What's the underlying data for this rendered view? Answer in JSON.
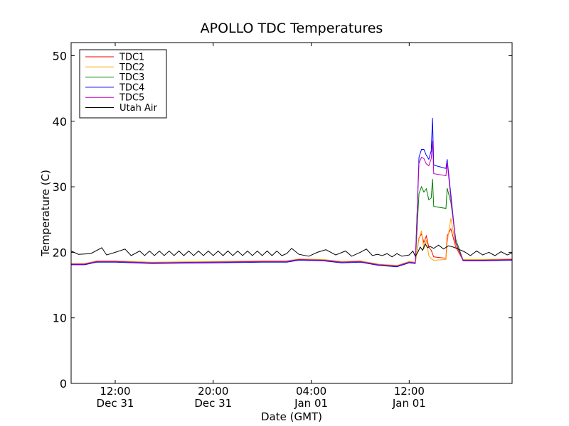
{
  "chart_data": {
    "type": "line",
    "title": "APOLLO TDC Temperatures",
    "xlabel": "Date (GMT)",
    "ylabel": "Temperature (C)",
    "ylim": [
      0,
      52
    ],
    "y_ticks": [
      0,
      10,
      20,
      30,
      40,
      50
    ],
    "x_axis_hours": "hours from Dec 31 00:00 GMT",
    "xlim": [
      8.4,
      44.4
    ],
    "x_ticks": [
      {
        "hour": 12,
        "time": "12:00",
        "date": "Dec 31"
      },
      {
        "hour": 20,
        "time": "20:00",
        "date": "Dec 31"
      },
      {
        "hour": 28,
        "time": "04:00",
        "date": "Jan 01"
      },
      {
        "hour": 36,
        "time": "12:00",
        "date": "Jan 01"
      }
    ],
    "legend_position": "top-left",
    "grid": false,
    "series": [
      {
        "name": "TDC1",
        "color": "#ff0000",
        "points": [
          [
            8.4,
            18.2
          ],
          [
            9.5,
            18.2
          ],
          [
            10.5,
            18.6
          ],
          [
            12,
            18.6
          ],
          [
            15,
            18.4
          ],
          [
            20,
            18.5
          ],
          [
            24,
            18.6
          ],
          [
            26,
            18.6
          ],
          [
            27,
            18.9
          ],
          [
            29,
            18.8
          ],
          [
            30.5,
            18.5
          ],
          [
            32,
            18.6
          ],
          [
            33.5,
            18.1
          ],
          [
            35,
            17.9
          ],
          [
            36,
            18.5
          ],
          [
            36.5,
            18.4
          ],
          [
            36.8,
            22.2
          ],
          [
            37,
            22.8
          ],
          [
            37.2,
            21.5
          ],
          [
            37.4,
            22.5
          ],
          [
            37.6,
            20.8
          ],
          [
            37.8,
            20.3
          ],
          [
            38,
            19.3
          ],
          [
            39,
            19.1
          ],
          [
            39.1,
            22.5
          ],
          [
            39.4,
            23.6
          ],
          [
            39.8,
            20.8
          ],
          [
            40.4,
            18.8
          ],
          [
            42,
            18.8
          ],
          [
            44.4,
            18.9
          ]
        ]
      },
      {
        "name": "TDC2",
        "color": "#ffa500",
        "points": [
          [
            8.4,
            18.3
          ],
          [
            9.5,
            18.3
          ],
          [
            10.5,
            18.7
          ],
          [
            12,
            18.7
          ],
          [
            15,
            18.5
          ],
          [
            20,
            18.6
          ],
          [
            24,
            18.7
          ],
          [
            26,
            18.7
          ],
          [
            27,
            19
          ],
          [
            29,
            18.9
          ],
          [
            30.5,
            18.6
          ],
          [
            32,
            18.7
          ],
          [
            33.5,
            18.2
          ],
          [
            35,
            18
          ],
          [
            36,
            18.6
          ],
          [
            36.5,
            18.5
          ],
          [
            36.8,
            22
          ],
          [
            37,
            23.3
          ],
          [
            37.2,
            20.5
          ],
          [
            37.4,
            21.9
          ],
          [
            37.6,
            19.5
          ],
          [
            37.8,
            19
          ],
          [
            38,
            18.8
          ],
          [
            39,
            18.9
          ],
          [
            39.1,
            21.5
          ],
          [
            39.4,
            25.2
          ],
          [
            39.8,
            21
          ],
          [
            40.4,
            18.9
          ],
          [
            42,
            18.9
          ],
          [
            44.4,
            19
          ]
        ]
      },
      {
        "name": "TDC3",
        "color": "#008000",
        "points": [
          [
            8.4,
            18.2
          ],
          [
            9.5,
            18.2
          ],
          [
            10.5,
            18.6
          ],
          [
            12,
            18.6
          ],
          [
            15,
            18.4
          ],
          [
            20,
            18.5
          ],
          [
            24,
            18.6
          ],
          [
            26,
            18.6
          ],
          [
            27,
            18.9
          ],
          [
            29,
            18.8
          ],
          [
            30.5,
            18.5
          ],
          [
            32,
            18.6
          ],
          [
            33.5,
            18.1
          ],
          [
            35,
            17.9
          ],
          [
            36,
            18.5
          ],
          [
            36.5,
            18.4
          ],
          [
            36.8,
            29
          ],
          [
            37,
            30
          ],
          [
            37.2,
            29.2
          ],
          [
            37.4,
            29.7
          ],
          [
            37.6,
            28
          ],
          [
            37.8,
            28.3
          ],
          [
            37.9,
            31.2
          ],
          [
            38,
            27
          ],
          [
            39,
            26.7
          ],
          [
            39.1,
            29.8
          ],
          [
            39.4,
            27.6
          ],
          [
            39.8,
            22
          ],
          [
            40.4,
            18.8
          ],
          [
            42,
            18.8
          ],
          [
            44.4,
            18.9
          ]
        ]
      },
      {
        "name": "TDC4",
        "color": "#0000ff",
        "points": [
          [
            8.4,
            18.1
          ],
          [
            9.5,
            18.1
          ],
          [
            10.5,
            18.5
          ],
          [
            12,
            18.5
          ],
          [
            15,
            18.3
          ],
          [
            20,
            18.4
          ],
          [
            24,
            18.5
          ],
          [
            26,
            18.5
          ],
          [
            27,
            18.8
          ],
          [
            29,
            18.7
          ],
          [
            30.5,
            18.4
          ],
          [
            32,
            18.5
          ],
          [
            33.5,
            18
          ],
          [
            35,
            17.8
          ],
          [
            36,
            18.4
          ],
          [
            36.5,
            18.3
          ],
          [
            36.8,
            34.5
          ],
          [
            37,
            35.7
          ],
          [
            37.2,
            35.7
          ],
          [
            37.4,
            34.8
          ],
          [
            37.6,
            34.2
          ],
          [
            37.8,
            35.5
          ],
          [
            37.9,
            40.5
          ],
          [
            38,
            33.3
          ],
          [
            39,
            32.8
          ],
          [
            39.1,
            34.2
          ],
          [
            39.4,
            28.8
          ],
          [
            39.8,
            21.5
          ],
          [
            40.4,
            18.7
          ],
          [
            42,
            18.7
          ],
          [
            44.4,
            18.8
          ]
        ]
      },
      {
        "name": "TDC5",
        "color": "#bf00bf",
        "points": [
          [
            8.4,
            18.2
          ],
          [
            9.5,
            18.2
          ],
          [
            10.5,
            18.6
          ],
          [
            12,
            18.6
          ],
          [
            15,
            18.4
          ],
          [
            20,
            18.5
          ],
          [
            24,
            18.6
          ],
          [
            26,
            18.6
          ],
          [
            27,
            18.9
          ],
          [
            29,
            18.8
          ],
          [
            30.5,
            18.5
          ],
          [
            32,
            18.6
          ],
          [
            33.5,
            18.1
          ],
          [
            35,
            17.9
          ],
          [
            36,
            18.5
          ],
          [
            36.5,
            18.4
          ],
          [
            36.8,
            33.6
          ],
          [
            37,
            34.5
          ],
          [
            37.2,
            34.3
          ],
          [
            37.4,
            33.5
          ],
          [
            37.6,
            33.2
          ],
          [
            37.8,
            34.3
          ],
          [
            37.9,
            37
          ],
          [
            38,
            32
          ],
          [
            39,
            31.7
          ],
          [
            39.1,
            33.8
          ],
          [
            39.4,
            28.2
          ],
          [
            39.8,
            21.4
          ],
          [
            40.4,
            18.8
          ],
          [
            42,
            18.8
          ],
          [
            44.4,
            18.9
          ]
        ]
      },
      {
        "name": "Utah Air",
        "color": "#000000",
        "points": [
          [
            8.4,
            20.2
          ],
          [
            9,
            19.7
          ],
          [
            10,
            19.8
          ],
          [
            10.9,
            20.7
          ],
          [
            11.3,
            19.6
          ],
          [
            12,
            20
          ],
          [
            12.8,
            20.5
          ],
          [
            13.3,
            19.5
          ],
          [
            14,
            20.2
          ],
          [
            14.4,
            19.5
          ],
          [
            14.8,
            20.2
          ],
          [
            15.2,
            19.5
          ],
          [
            15.6,
            20.2
          ],
          [
            16,
            19.5
          ],
          [
            16.4,
            20.2
          ],
          [
            16.8,
            19.5
          ],
          [
            17.2,
            20.2
          ],
          [
            17.6,
            19.5
          ],
          [
            18,
            20.2
          ],
          [
            18.4,
            19.5
          ],
          [
            18.8,
            20.2
          ],
          [
            19.2,
            19.5
          ],
          [
            19.6,
            20.2
          ],
          [
            20,
            19.5
          ],
          [
            20.4,
            20.2
          ],
          [
            20.8,
            19.5
          ],
          [
            21.2,
            20.2
          ],
          [
            21.6,
            19.5
          ],
          [
            22,
            20.2
          ],
          [
            22.4,
            19.5
          ],
          [
            22.8,
            20.2
          ],
          [
            23.2,
            19.5
          ],
          [
            23.6,
            20.2
          ],
          [
            24,
            19.5
          ],
          [
            24.4,
            20.2
          ],
          [
            24.8,
            19.5
          ],
          [
            25.2,
            20.2
          ],
          [
            25.6,
            19.5
          ],
          [
            26,
            19.8
          ],
          [
            26.4,
            20.6
          ],
          [
            27,
            19.7
          ],
          [
            27.8,
            19.4
          ],
          [
            28.5,
            20
          ],
          [
            29.2,
            20.4
          ],
          [
            30,
            19.6
          ],
          [
            30.8,
            20.2
          ],
          [
            31.3,
            19.4
          ],
          [
            32,
            20
          ],
          [
            32.5,
            20.5
          ],
          [
            33,
            19.5
          ],
          [
            33.4,
            19.7
          ],
          [
            33.8,
            19.5
          ],
          [
            34.2,
            19.8
          ],
          [
            34.6,
            19.3
          ],
          [
            35,
            19.8
          ],
          [
            35.4,
            19.4
          ],
          [
            36,
            19.6
          ],
          [
            36.3,
            20.2
          ],
          [
            36.5,
            19.4
          ],
          [
            36.7,
            20
          ],
          [
            36.9,
            20.8
          ],
          [
            37.1,
            20.3
          ],
          [
            37.3,
            21.3
          ],
          [
            37.5,
            20.7
          ],
          [
            37.7,
            20.9
          ],
          [
            38,
            20.6
          ],
          [
            38.4,
            21.1
          ],
          [
            38.8,
            20.5
          ],
          [
            39.2,
            21
          ],
          [
            39.6,
            20.8
          ],
          [
            40,
            20.5
          ],
          [
            40.5,
            20.1
          ],
          [
            41,
            19.5
          ],
          [
            41.5,
            20.2
          ],
          [
            42,
            19.6
          ],
          [
            42.5,
            20
          ],
          [
            43,
            19.5
          ],
          [
            43.5,
            20.1
          ],
          [
            44,
            19.6
          ],
          [
            44.4,
            19.9
          ]
        ]
      }
    ]
  }
}
